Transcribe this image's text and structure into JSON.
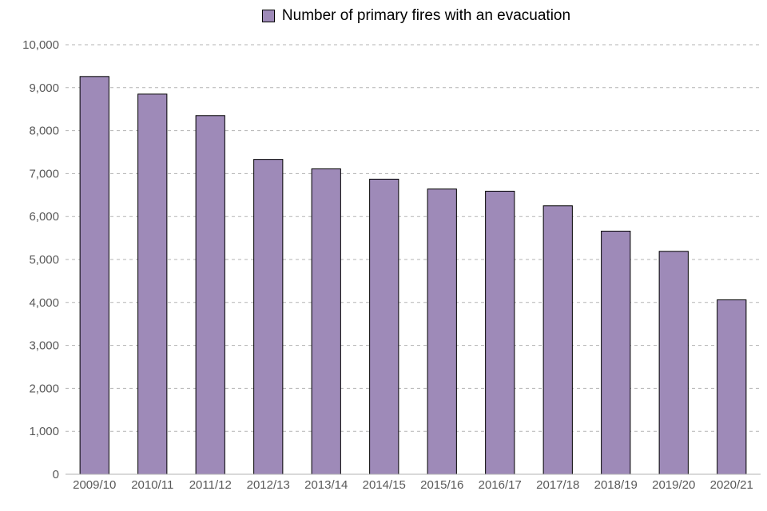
{
  "chart_data": {
    "type": "bar",
    "title": "",
    "xlabel": "",
    "ylabel": "",
    "categories": [
      "2009/10",
      "2010/11",
      "2011/12",
      "2012/13",
      "2013/14",
      "2014/15",
      "2015/16",
      "2016/17",
      "2017/18",
      "2018/19",
      "2019/20",
      "2020/21"
    ],
    "series": [
      {
        "name": "Number of primary fires with an evacuation",
        "values": [
          9260,
          8850,
          8350,
          7330,
          7110,
          6870,
          6640,
          6590,
          6250,
          5660,
          5190,
          4060
        ],
        "color": "#9e8ab8"
      }
    ],
    "ylim": [
      0,
      10000
    ],
    "yticks": [
      "0",
      "1,000",
      "2,000",
      "3,000",
      "4,000",
      "5,000",
      "6,000",
      "7,000",
      "8,000",
      "9,000",
      "10,000"
    ],
    "grid": "horizontal dashed",
    "legend_position": "top-center",
    "bar_outline_color": "#000000",
    "tick_label_color": "#595959",
    "grid_color": "#b3b3b3"
  }
}
